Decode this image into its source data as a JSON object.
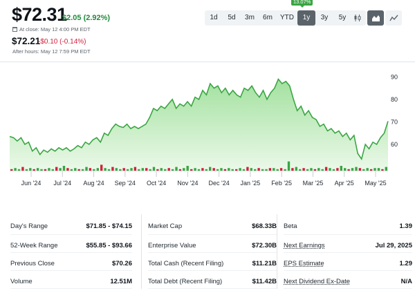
{
  "quote": {
    "price": "$72.31",
    "change": "$2.05 (2.92%)",
    "close_label": "At close: May 12 4:00 PM EDT",
    "after_hours_price": "$72.21",
    "after_hours_change": "-$0.10 (-0.14%)",
    "after_hours_label": "After hours: May 12 7:59 PM EDT",
    "colors": {
      "up": "#1e8b3b",
      "down": "#d6203c"
    }
  },
  "range_tabs": [
    {
      "label": "1d"
    },
    {
      "label": "5d"
    },
    {
      "label": "3m"
    },
    {
      "label": "6m"
    },
    {
      "label": "YTD"
    },
    {
      "label": "1y",
      "active": true
    },
    {
      "label": "3y"
    },
    {
      "label": "5y"
    }
  ],
  "range_change_badge": "13.07%",
  "chart_type_buttons": [
    {
      "icon": "candlestick-chart-icon"
    },
    {
      "icon": "mountain-chart-icon",
      "active": true
    },
    {
      "icon": "line-chart-icon"
    }
  ],
  "chart_data": {
    "type": "area",
    "x_labels": [
      "Jun '24",
      "Jul '24",
      "Aug '24",
      "Sep '24",
      "Oct '24",
      "Nov '24",
      "Dec '24",
      "Jan '25",
      "Feb '25",
      "Mar '25",
      "Apr '25",
      "May '25"
    ],
    "y_ticks": [
      90,
      80,
      70,
      60
    ],
    "ylim": [
      48,
      95
    ],
    "x_range": [
      0,
      100
    ],
    "grid": false,
    "line_color": "#3aa543",
    "fill_color": "#c7efc4",
    "series": [
      {
        "x": 0,
        "y": 63.5
      },
      {
        "x": 1,
        "y": 63
      },
      {
        "x": 2,
        "y": 61.5
      },
      {
        "x": 3,
        "y": 63
      },
      {
        "x": 4,
        "y": 60
      },
      {
        "x": 5,
        "y": 61
      },
      {
        "x": 6,
        "y": 57
      },
      {
        "x": 7,
        "y": 58.5
      },
      {
        "x": 8,
        "y": 55.5
      },
      {
        "x": 9,
        "y": 57.5
      },
      {
        "x": 10,
        "y": 56.5
      },
      {
        "x": 11,
        "y": 58
      },
      {
        "x": 12,
        "y": 57
      },
      {
        "x": 13,
        "y": 58.5
      },
      {
        "x": 14,
        "y": 57.5
      },
      {
        "x": 15,
        "y": 58.5
      },
      {
        "x": 16,
        "y": 57
      },
      {
        "x": 17,
        "y": 58
      },
      {
        "x": 18,
        "y": 59.5
      },
      {
        "x": 19,
        "y": 58.5
      },
      {
        "x": 20,
        "y": 61
      },
      {
        "x": 21,
        "y": 60
      },
      {
        "x": 22,
        "y": 62
      },
      {
        "x": 23,
        "y": 63
      },
      {
        "x": 24,
        "y": 61
      },
      {
        "x": 25,
        "y": 65
      },
      {
        "x": 26,
        "y": 64
      },
      {
        "x": 27,
        "y": 67
      },
      {
        "x": 28,
        "y": 69
      },
      {
        "x": 29,
        "y": 68
      },
      {
        "x": 30,
        "y": 67.5
      },
      {
        "x": 31,
        "y": 69
      },
      {
        "x": 32,
        "y": 67
      },
      {
        "x": 33,
        "y": 68
      },
      {
        "x": 34,
        "y": 67
      },
      {
        "x": 35,
        "y": 68
      },
      {
        "x": 36,
        "y": 69
      },
      {
        "x": 37,
        "y": 72
      },
      {
        "x": 38,
        "y": 76
      },
      {
        "x": 39,
        "y": 75
      },
      {
        "x": 40,
        "y": 77
      },
      {
        "x": 41,
        "y": 76
      },
      {
        "x": 42,
        "y": 78
      },
      {
        "x": 43,
        "y": 80
      },
      {
        "x": 44,
        "y": 76
      },
      {
        "x": 45,
        "y": 78
      },
      {
        "x": 46,
        "y": 77
      },
      {
        "x": 47,
        "y": 79
      },
      {
        "x": 48,
        "y": 77
      },
      {
        "x": 49,
        "y": 81
      },
      {
        "x": 50,
        "y": 80
      },
      {
        "x": 51,
        "y": 84
      },
      {
        "x": 52,
        "y": 82
      },
      {
        "x": 53,
        "y": 87
      },
      {
        "x": 54,
        "y": 85
      },
      {
        "x": 55,
        "y": 86
      },
      {
        "x": 56,
        "y": 83
      },
      {
        "x": 57,
        "y": 85
      },
      {
        "x": 58,
        "y": 82
      },
      {
        "x": 59,
        "y": 84
      },
      {
        "x": 60,
        "y": 82
      },
      {
        "x": 61,
        "y": 81
      },
      {
        "x": 62,
        "y": 85
      },
      {
        "x": 63,
        "y": 84
      },
      {
        "x": 64,
        "y": 86
      },
      {
        "x": 65,
        "y": 83
      },
      {
        "x": 66,
        "y": 81
      },
      {
        "x": 67,
        "y": 84
      },
      {
        "x": 68,
        "y": 80
      },
      {
        "x": 69,
        "y": 83
      },
      {
        "x": 70,
        "y": 85
      },
      {
        "x": 71,
        "y": 89
      },
      {
        "x": 72,
        "y": 87
      },
      {
        "x": 73,
        "y": 88
      },
      {
        "x": 74,
        "y": 86
      },
      {
        "x": 75,
        "y": 80
      },
      {
        "x": 76,
        "y": 75
      },
      {
        "x": 77,
        "y": 77
      },
      {
        "x": 78,
        "y": 73
      },
      {
        "x": 79,
        "y": 75
      },
      {
        "x": 80,
        "y": 72
      },
      {
        "x": 81,
        "y": 71
      },
      {
        "x": 82,
        "y": 68
      },
      {
        "x": 83,
        "y": 69
      },
      {
        "x": 84,
        "y": 66
      },
      {
        "x": 85,
        "y": 67
      },
      {
        "x": 86,
        "y": 65
      },
      {
        "x": 87,
        "y": 66
      },
      {
        "x": 88,
        "y": 63.5
      },
      {
        "x": 89,
        "y": 65
      },
      {
        "x": 90,
        "y": 62
      },
      {
        "x": 91,
        "y": 64
      },
      {
        "x": 92,
        "y": 56
      },
      {
        "x": 93,
        "y": 53.5
      },
      {
        "x": 94,
        "y": 60
      },
      {
        "x": 95,
        "y": 58
      },
      {
        "x": 96,
        "y": 61
      },
      {
        "x": 97,
        "y": 60
      },
      {
        "x": 98,
        "y": 63
      },
      {
        "x": 99,
        "y": 65
      },
      {
        "x": 100,
        "y": 70.3
      }
    ],
    "volume": [
      2,
      3,
      2,
      4,
      2,
      3,
      2,
      3,
      2,
      2,
      3,
      2,
      4,
      3,
      5,
      3,
      2,
      3,
      2,
      2,
      4,
      3,
      2,
      3,
      6,
      3,
      2,
      4,
      3,
      2,
      3,
      2,
      3,
      4,
      2,
      3,
      3,
      2,
      4,
      2,
      3,
      2,
      3,
      2,
      4,
      2,
      3,
      5,
      2,
      3,
      2,
      3,
      2,
      4,
      3,
      2,
      3,
      2,
      3,
      2,
      2,
      3,
      2,
      4,
      3,
      2,
      3,
      2,
      2,
      3,
      3,
      2,
      3,
      2,
      9,
      3,
      4,
      2,
      3,
      2,
      3,
      2,
      3,
      2,
      4,
      3,
      2,
      3,
      5,
      3,
      2,
      3,
      4,
      3,
      2,
      3,
      2,
      3,
      3,
      2,
      4
    ],
    "volume_colors": [
      "#3aa543",
      "#d6203c"
    ]
  },
  "stats": {
    "col1": [
      {
        "label": "Day's Range",
        "value": "$71.85 - $74.15"
      },
      {
        "label": "52-Week Range",
        "value": "$55.85 - $93.66"
      },
      {
        "label": "Previous Close",
        "value": "$70.26"
      },
      {
        "label": "Volume",
        "value": "12.51M"
      }
    ],
    "col2": [
      {
        "label": "Market Cap",
        "value": "$68.33B"
      },
      {
        "label": "Enterprise Value",
        "value": "$72.30B"
      },
      {
        "label": "Total Cash (Recent Filing)",
        "value": "$11.21B"
      },
      {
        "label": "Total Debt (Recent Filing)",
        "value": "$11.42B"
      }
    ],
    "col3": [
      {
        "label": "Beta",
        "value": "1.39"
      },
      {
        "label": "Next Earnings",
        "value": "Jul 29, 2025",
        "link": true
      },
      {
        "label": "EPS Estimate",
        "value": "1.29",
        "link": true
      },
      {
        "label": "Next Dividend Ex-Date",
        "value": "N/A"
      }
    ]
  }
}
